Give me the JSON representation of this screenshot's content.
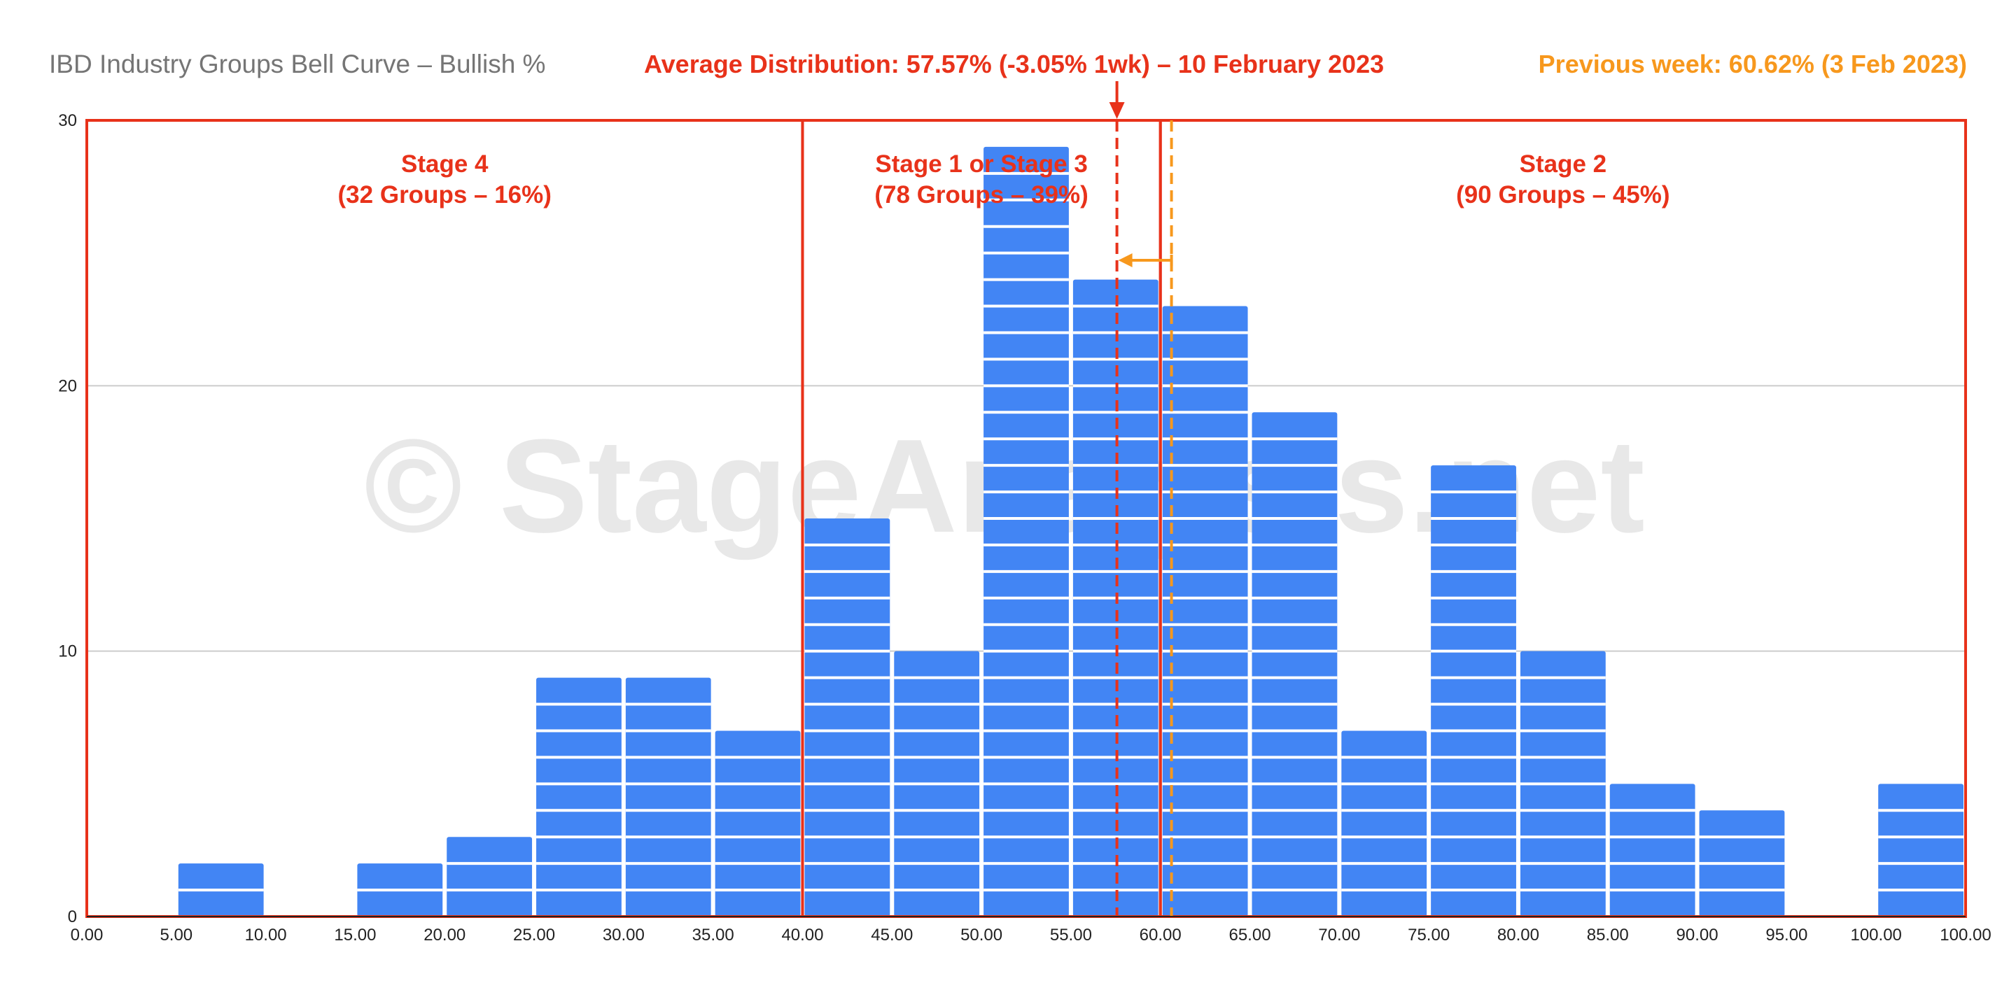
{
  "chart_data": {
    "type": "bar",
    "title": "IBD Industry Groups Bell Curve – Bullish %",
    "average_label": "Average Distribution: 57.57% (-3.05% 1wk) – 10 February 2023",
    "previous_label": "Previous week: 60.62% (3 Feb 2023)",
    "average_value": 57.57,
    "previous_value": 60.62,
    "watermark": "© StageAnalysis.net",
    "x_ticks": [
      "0.00",
      "5.00",
      "10.00",
      "15.00",
      "20.00",
      "25.00",
      "30.00",
      "35.00",
      "40.00",
      "45.00",
      "50.00",
      "55.00",
      "60.00",
      "65.00",
      "70.00",
      "75.00",
      "80.00",
      "85.00",
      "90.00",
      "95.00",
      "100.00",
      "100.00"
    ],
    "y_ticks": [
      "0",
      "10",
      "20",
      "30"
    ],
    "xlim": [
      0,
      105
    ],
    "ylim": [
      0,
      30
    ],
    "grid": true,
    "bins": [
      {
        "from": 5,
        "to": 10,
        "count": 2
      },
      {
        "from": 15,
        "to": 20,
        "count": 2
      },
      {
        "from": 20,
        "to": 25,
        "count": 3
      },
      {
        "from": 25,
        "to": 30,
        "count": 9
      },
      {
        "from": 30,
        "to": 35,
        "count": 9
      },
      {
        "from": 35,
        "to": 40,
        "count": 7
      },
      {
        "from": 40,
        "to": 45,
        "count": 15
      },
      {
        "from": 45,
        "to": 50,
        "count": 10
      },
      {
        "from": 50,
        "to": 55,
        "count": 29
      },
      {
        "from": 55,
        "to": 60,
        "count": 24
      },
      {
        "from": 60,
        "to": 65,
        "count": 23
      },
      {
        "from": 65,
        "to": 70,
        "count": 19
      },
      {
        "from": 70,
        "to": 75,
        "count": 7
      },
      {
        "from": 75,
        "to": 80,
        "count": 17
      },
      {
        "from": 80,
        "to": 85,
        "count": 10
      },
      {
        "from": 85,
        "to": 90,
        "count": 5
      },
      {
        "from": 90,
        "to": 95,
        "count": 4
      },
      {
        "from": 100,
        "to": 105,
        "count": 5
      }
    ],
    "stages": [
      {
        "from": 0,
        "to": 40,
        "name": "Stage 4",
        "detail": "(32 Groups – 16%)"
      },
      {
        "from": 40,
        "to": 60,
        "name": "Stage 1 or Stage 3",
        "detail": "(78 Groups – 39%)"
      },
      {
        "from": 60,
        "to": 105,
        "name": "Stage 2",
        "detail": "(90 Groups – 45%)"
      }
    ],
    "colors": {
      "bar": "#4285f4",
      "stage_border": "#e8321a",
      "average": "#e8321a",
      "previous": "#f7981d",
      "grid": "#cccccc"
    }
  }
}
